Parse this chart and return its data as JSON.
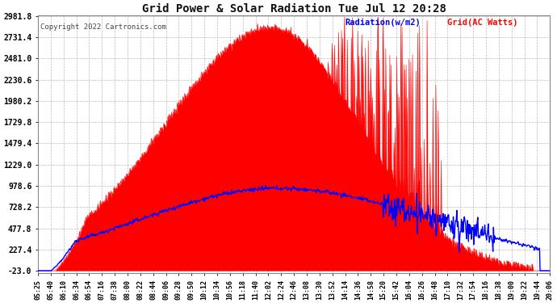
{
  "title": "Grid Power & Solar Radiation Tue Jul 12 20:28",
  "copyright": "Copyright 2022 Cartronics.com",
  "legend_radiation": "Radiation(w/m2)",
  "legend_grid": "Grid(AC Watts)",
  "yticks": [
    -23.0,
    227.4,
    477.8,
    728.2,
    978.6,
    1229.0,
    1479.4,
    1729.8,
    1980.2,
    2230.6,
    2481.0,
    2731.4,
    2981.8
  ],
  "ymin": -23.0,
  "ymax": 2981.8,
  "bg_color": "#ffffff",
  "plot_bg_color": "#ffffff",
  "grid_color": "#aaaaaa",
  "radiation_color": "#0000ff",
  "grid_power_color": "#ff0000",
  "fill_color": "#ff0000",
  "xtick_labels": [
    "05:25",
    "05:40",
    "06:10",
    "06:34",
    "06:54",
    "07:16",
    "07:38",
    "08:00",
    "08:22",
    "08:44",
    "09:06",
    "09:28",
    "09:50",
    "10:12",
    "10:34",
    "10:56",
    "11:18",
    "11:40",
    "12:02",
    "12:24",
    "12:46",
    "13:08",
    "13:30",
    "13:52",
    "14:14",
    "14:36",
    "14:58",
    "15:20",
    "15:42",
    "16:04",
    "16:26",
    "16:48",
    "17:10",
    "17:32",
    "17:54",
    "18:16",
    "18:38",
    "19:00",
    "19:22",
    "19:44",
    "20:06"
  ],
  "font_family": "monospace"
}
